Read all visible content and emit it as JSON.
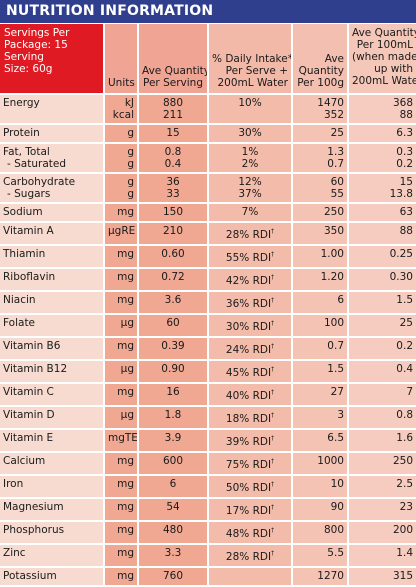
{
  "title": "NUTRITION INFORMATION",
  "servings": {
    "line1": "Servings Per",
    "line2": "Package: 15",
    "line3": "Serving",
    "line4": "Size: 60g"
  },
  "headers": {
    "units": "Units",
    "per_serving_1": "Ave Quantity",
    "per_serving_2": "Per Serving",
    "daily_1": "% Daily Intake*",
    "daily_2": "Per Serve +",
    "daily_3": "200mL Water",
    "per100g_1": "Ave",
    "per100g_2": "Quantity",
    "per100g_3": "Per 100g",
    "per100ml_1": "Ave Quantity",
    "per100ml_2": "Per 100mL",
    "per100ml_3": "(when made",
    "per100ml_4": "up with",
    "per100ml_5": "200mL Water)"
  },
  "rows": [
    {
      "name": [
        "Energy",
        ""
      ],
      "units": [
        "kJ",
        "kcal"
      ],
      "serving": [
        "880",
        "211"
      ],
      "daily": [
        "10%",
        ""
      ],
      "p100g": [
        "1470",
        "352"
      ],
      "p100ml": [
        "368",
        "88"
      ]
    },
    {
      "name": [
        "Protein"
      ],
      "units": [
        "g"
      ],
      "serving": [
        "15"
      ],
      "daily": [
        "30%"
      ],
      "p100g": [
        "25"
      ],
      "p100ml": [
        "6.3"
      ]
    },
    {
      "name": [
        "Fat, Total",
        "- Saturated"
      ],
      "units": [
        "g",
        "g"
      ],
      "serving": [
        "0.8",
        "0.4"
      ],
      "daily": [
        "1%",
        "2%"
      ],
      "p100g": [
        "1.3",
        "0.7"
      ],
      "p100ml": [
        "0.3",
        "0.2"
      ]
    },
    {
      "name": [
        "Carbohydrate",
        "- Sugars"
      ],
      "units": [
        "g",
        "g"
      ],
      "serving": [
        "36",
        "33"
      ],
      "daily": [
        "12%",
        "37%"
      ],
      "p100g": [
        "60",
        "55"
      ],
      "p100ml": [
        "15",
        "13.8"
      ]
    },
    {
      "name": [
        "Sodium"
      ],
      "units": [
        "mg"
      ],
      "serving": [
        "150"
      ],
      "daily": [
        "7%"
      ],
      "p100g": [
        "250"
      ],
      "p100ml": [
        "63"
      ]
    },
    {
      "name": [
        "Vitamin A"
      ],
      "units": [
        "μgRE"
      ],
      "serving": [
        "210"
      ],
      "daily": [
        "28% RDI"
      ],
      "p100g": [
        "350"
      ],
      "p100ml": [
        "88"
      ]
    },
    {
      "name": [
        "Thiamin"
      ],
      "units": [
        "mg"
      ],
      "serving": [
        "0.60"
      ],
      "daily": [
        "55% RDI"
      ],
      "p100g": [
        "1.00"
      ],
      "p100ml": [
        "0.25"
      ]
    },
    {
      "name": [
        "Riboflavin"
      ],
      "units": [
        "mg"
      ],
      "serving": [
        "0.72"
      ],
      "daily": [
        "42% RDI"
      ],
      "p100g": [
        "1.20"
      ],
      "p100ml": [
        "0.30"
      ]
    },
    {
      "name": [
        "Niacin"
      ],
      "units": [
        "mg"
      ],
      "serving": [
        "3.6"
      ],
      "daily": [
        "36% RDI"
      ],
      "p100g": [
        "6"
      ],
      "p100ml": [
        "1.5"
      ]
    },
    {
      "name": [
        "Folate"
      ],
      "units": [
        "μg"
      ],
      "serving": [
        "60"
      ],
      "daily": [
        "30% RDI"
      ],
      "p100g": [
        "100"
      ],
      "p100ml": [
        "25"
      ]
    },
    {
      "name": [
        "Vitamin B6"
      ],
      "units": [
        "mg"
      ],
      "serving": [
        "0.39"
      ],
      "daily": [
        "24% RDI"
      ],
      "p100g": [
        "0.7"
      ],
      "p100ml": [
        "0.2"
      ]
    },
    {
      "name": [
        "Vitamin B12"
      ],
      "units": [
        "μg"
      ],
      "serving": [
        "0.90"
      ],
      "daily": [
        "45% RDI"
      ],
      "p100g": [
        "1.5"
      ],
      "p100ml": [
        "0.4"
      ]
    },
    {
      "name": [
        "Vitamin C"
      ],
      "units": [
        "mg"
      ],
      "serving": [
        "16"
      ],
      "daily": [
        "40% RDI"
      ],
      "p100g": [
        "27"
      ],
      "p100ml": [
        "7"
      ]
    },
    {
      "name": [
        "Vitamin D"
      ],
      "units": [
        "μg"
      ],
      "serving": [
        "1.8"
      ],
      "daily": [
        "18% RDI"
      ],
      "p100g": [
        "3"
      ],
      "p100ml": [
        "0.8"
      ]
    },
    {
      "name": [
        "Vitamin E"
      ],
      "units": [
        "mgTE"
      ],
      "serving": [
        "3.9"
      ],
      "daily": [
        "39% RDI"
      ],
      "p100g": [
        "6.5"
      ],
      "p100ml": [
        "1.6"
      ]
    },
    {
      "name": [
        "Calcium"
      ],
      "units": [
        "mg"
      ],
      "serving": [
        "600"
      ],
      "daily": [
        "75% RDI"
      ],
      "p100g": [
        "1000"
      ],
      "p100ml": [
        "250"
      ]
    },
    {
      "name": [
        "Iron"
      ],
      "units": [
        "mg"
      ],
      "serving": [
        "6"
      ],
      "daily": [
        "50% RDI"
      ],
      "p100g": [
        "10"
      ],
      "p100ml": [
        "2.5"
      ]
    },
    {
      "name": [
        "Magnesium"
      ],
      "units": [
        "mg"
      ],
      "serving": [
        "54"
      ],
      "daily": [
        "17% RDI"
      ],
      "p100g": [
        "90"
      ],
      "p100ml": [
        "23"
      ]
    },
    {
      "name": [
        "Phosphorus"
      ],
      "units": [
        "mg"
      ],
      "serving": [
        "480"
      ],
      "daily": [
        "48% RDI"
      ],
      "p100g": [
        "800"
      ],
      "p100ml": [
        "200"
      ]
    },
    {
      "name": [
        "Zinc"
      ],
      "units": [
        "mg"
      ],
      "serving": [
        "3.3"
      ],
      "daily": [
        "28% RDI"
      ],
      "p100g": [
        "5.5"
      ],
      "p100ml": [
        "1.4"
      ]
    },
    {
      "name": [
        "Potassium"
      ],
      "units": [
        "mg"
      ],
      "serving": [
        "760"
      ],
      "daily": [
        ""
      ],
      "p100g": [
        "1270"
      ],
      "p100ml": [
        "315"
      ]
    }
  ],
  "rdi_marker": "†",
  "colors": {
    "title_bar": "#2f3f8e",
    "servings_box": "#e01a22",
    "panel": "#f2cfc2"
  }
}
